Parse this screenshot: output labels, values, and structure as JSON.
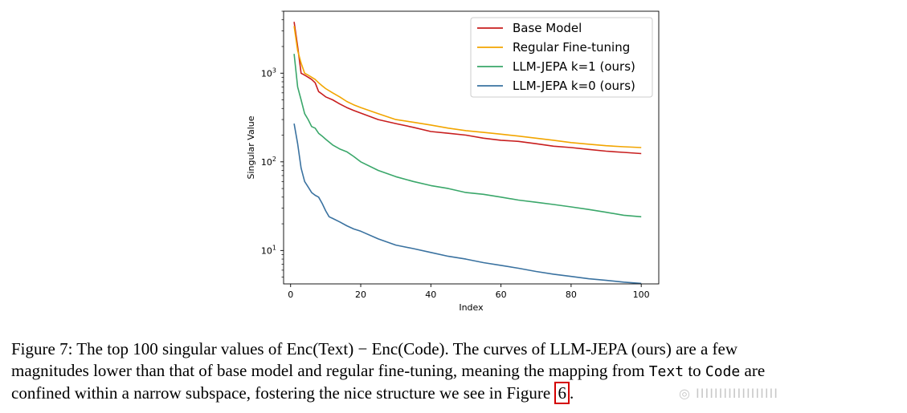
{
  "chart_data": {
    "type": "line",
    "xlabel": "Index",
    "ylabel": "Singular Value",
    "xlim": [
      -2,
      105
    ],
    "ylim": [
      4.2,
      5000
    ],
    "yscale": "log",
    "xticks": [
      0,
      20,
      40,
      60,
      80,
      100
    ],
    "yticks": [
      {
        "value": 10,
        "base": "10",
        "exp": "1"
      },
      {
        "value": 100,
        "base": "10",
        "exp": "2"
      },
      {
        "value": 1000,
        "base": "10",
        "exp": "3"
      }
    ],
    "grid": false,
    "legend_position": "top-right",
    "series": [
      {
        "name": "Base Model",
        "color": "#c81e1e",
        "x": [
          1,
          2,
          3,
          4,
          5,
          6,
          7,
          8,
          9,
          10,
          12,
          14,
          16,
          18,
          20,
          25,
          30,
          35,
          40,
          45,
          50,
          55,
          60,
          65,
          70,
          75,
          80,
          85,
          90,
          95,
          100
        ],
        "y": [
          3800,
          2000,
          1000,
          950,
          900,
          850,
          780,
          620,
          580,
          540,
          500,
          450,
          410,
          380,
          355,
          300,
          270,
          245,
          220,
          210,
          200,
          185,
          175,
          170,
          160,
          150,
          145,
          138,
          132,
          128,
          124
        ]
      },
      {
        "name": "Regular Fine-tuning",
        "color": "#f2a500",
        "x": [
          1,
          2,
          3,
          4,
          5,
          6,
          7,
          8,
          9,
          10,
          12,
          14,
          16,
          18,
          20,
          25,
          30,
          35,
          40,
          45,
          50,
          55,
          60,
          65,
          70,
          75,
          80,
          85,
          90,
          95,
          100
        ],
        "y": [
          3400,
          1800,
          1300,
          1000,
          950,
          900,
          850,
          780,
          720,
          670,
          600,
          540,
          480,
          440,
          410,
          350,
          300,
          280,
          260,
          240,
          225,
          215,
          205,
          195,
          185,
          175,
          165,
          158,
          152,
          148,
          145
        ]
      },
      {
        "name": "LLM-JEPA k=1 (ours)",
        "color": "#3aa76a",
        "x": [
          1,
          2,
          3,
          4,
          5,
          6,
          7,
          8,
          9,
          10,
          12,
          14,
          16,
          18,
          20,
          25,
          30,
          35,
          40,
          45,
          50,
          55,
          60,
          65,
          70,
          75,
          80,
          85,
          90,
          95,
          100
        ],
        "y": [
          1650,
          700,
          500,
          350,
          300,
          250,
          240,
          210,
          195,
          180,
          155,
          140,
          130,
          115,
          100,
          80,
          68,
          60,
          54,
          50,
          45,
          43,
          40,
          37,
          35,
          33,
          31,
          29,
          27,
          25,
          24
        ]
      },
      {
        "name": "LLM-JEPA k=0 (ours)",
        "color": "#3a72a0",
        "x": [
          1,
          2,
          3,
          4,
          5,
          6,
          7,
          8,
          9,
          10,
          11,
          12,
          14,
          16,
          18,
          20,
          25,
          30,
          35,
          40,
          45,
          50,
          55,
          60,
          65,
          70,
          75,
          80,
          85,
          90,
          95,
          100
        ],
        "y": [
          270,
          160,
          85,
          60,
          52,
          45,
          42,
          40,
          34,
          28,
          24,
          23,
          21,
          19,
          17.5,
          16.5,
          13.5,
          11.5,
          10.5,
          9.5,
          8.6,
          8,
          7.3,
          6.8,
          6.3,
          5.8,
          5.4,
          5.1,
          4.8,
          4.6,
          4.4,
          4.25
        ]
      }
    ]
  },
  "caption": {
    "label": "Figure 7:",
    "line1_a": "The top 100 singular values of ",
    "line1_math": "Enc(Text) − Enc(Code)",
    "line1_b": ". The curves of LLM-JEPA (ours) are a few",
    "line2_a": "magnitudes lower than that of base model and regular fine-tuning, meaning the mapping from ",
    "line2_code1": "Text",
    "line2_mid": " to ",
    "line2_code2": "Code",
    "line2_b": " are",
    "line3_a": "confined within a narrow subspace, fostering the nice structure we see in Figure ",
    "line3_ref": "6",
    "line3_b": "."
  },
  "watermark": "◎ IIIIIIIIIIIIIIIIII"
}
